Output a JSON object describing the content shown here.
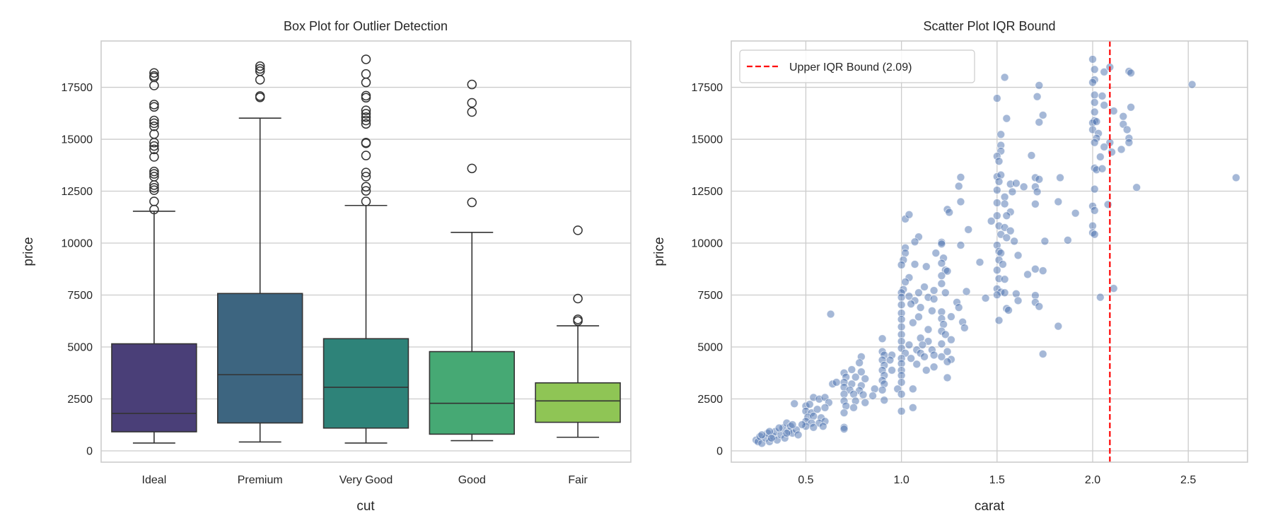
{
  "chart_data": [
    {
      "type": "box",
      "title": "Box Plot for Outlier Detection",
      "xlabel": "cut",
      "ylabel": "price",
      "ylim": [
        -545,
        19730
      ],
      "yticks": [
        0,
        2500,
        5000,
        7500,
        10000,
        12500,
        15000,
        17500
      ],
      "grid": true,
      "categories": [
        "Ideal",
        "Premium",
        "Very Good",
        "Good",
        "Fair"
      ],
      "colors": [
        "#4a3f78",
        "#3d6580",
        "#2e8379",
        "#46a974",
        "#8fc555"
      ],
      "boxes": [
        {
          "whisker_low": 376,
          "q1": 916,
          "median": 1800,
          "q3": 5153,
          "whisker_high": 11534,
          "outliers": [
            18192,
            18050,
            17980,
            17587,
            16671,
            16556,
            15902,
            15771,
            15624,
            15248,
            14838,
            14675,
            14511,
            14151,
            13448,
            13333,
            13202,
            12793,
            12663,
            12548,
            12008,
            11616
          ]
        },
        {
          "whisker_low": 425,
          "q1": 1342,
          "median": 3665,
          "q3": 7575,
          "whisker_high": 16016,
          "outliers": [
            18520,
            18389,
            18274,
            17865,
            17080,
            17015
          ]
        },
        {
          "whisker_low": 376,
          "q1": 1096,
          "median": 3059,
          "q3": 5399,
          "whisker_high": 11812,
          "outliers": [
            18847,
            18143,
            17734,
            17096,
            16998,
            16393,
            16229,
            16065,
            15902,
            15738,
            14838,
            14806,
            14217,
            13399,
            13202,
            12712,
            12515,
            12008
          ]
        },
        {
          "whisker_low": 491,
          "q1": 802,
          "median": 2290,
          "q3": 4777,
          "whisker_high": 10519,
          "outliers": [
            17636,
            16753,
            16311,
            13595,
            11959
          ]
        },
        {
          "whisker_low": 654,
          "q1": 1374,
          "median": 2405,
          "q3": 3272,
          "whisker_high": 6020,
          "outliers": [
            10617,
            7329,
            6331,
            6249
          ]
        }
      ]
    },
    {
      "type": "scatter",
      "title": "Scatter Plot IQR Bound",
      "xlabel": "carat",
      "ylabel": "price",
      "xlim": [
        0.11,
        2.81
      ],
      "ylim": [
        -545,
        19730
      ],
      "xticks": [
        0.5,
        1.0,
        1.5,
        2.0,
        2.5
      ],
      "xtick_labels": [
        "0.5",
        "1.0",
        "1.5",
        "2.0",
        "2.5"
      ],
      "yticks": [
        0,
        2500,
        5000,
        7500,
        10000,
        12500,
        15000,
        17500
      ],
      "grid": true,
      "point_color": "#4c72b0",
      "point_alpha": 0.5,
      "vline": {
        "x": 2.09,
        "color": "#ff0000",
        "style": "dashed",
        "label": "Upper IQR Bound (2.09)"
      },
      "legend_position": "top-left",
      "points": [
        [
          2.0,
          18850
        ],
        [
          2.01,
          18360
        ],
        [
          2.01,
          17865
        ],
        [
          2.0,
          17735
        ],
        [
          2.06,
          18240
        ],
        [
          2.09,
          18470
        ],
        [
          2.19,
          18270
        ],
        [
          2.2,
          18190
        ],
        [
          2.52,
          17636
        ],
        [
          2.05,
          17080
        ],
        [
          2.01,
          17130
        ],
        [
          2.01,
          16770
        ],
        [
          2.06,
          16640
        ],
        [
          2.11,
          16360
        ],
        [
          2.2,
          16540
        ],
        [
          2.01,
          16310
        ],
        [
          2.16,
          16100
        ],
        [
          2.16,
          15720
        ],
        [
          2.01,
          15900
        ],
        [
          2.0,
          15790
        ],
        [
          2.02,
          15850
        ],
        [
          2.0,
          15460
        ],
        [
          2.03,
          15280
        ],
        [
          2.18,
          15460
        ],
        [
          2.19,
          15050
        ],
        [
          2.02,
          15050
        ],
        [
          2.01,
          14840
        ],
        [
          2.09,
          14840
        ],
        [
          2.19,
          14840
        ],
        [
          2.06,
          14630
        ],
        [
          2.15,
          14510
        ],
        [
          2.1,
          14380
        ],
        [
          2.04,
          14150
        ],
        [
          2.01,
          13610
        ],
        [
          2.02,
          13530
        ],
        [
          2.05,
          13580
        ],
        [
          2.75,
          13150
        ],
        [
          2.23,
          12680
        ],
        [
          2.01,
          12600
        ],
        [
          2.08,
          11860
        ],
        [
          2.0,
          11780
        ],
        [
          2.01,
          11570
        ],
        [
          2.0,
          10830
        ],
        [
          2.0,
          10500
        ],
        [
          2.01,
          10420
        ],
        [
          2.11,
          7820
        ],
        [
          2.04,
          7395
        ],
        [
          1.54,
          17980
        ],
        [
          1.5,
          16970
        ],
        [
          1.72,
          17590
        ],
        [
          1.71,
          17050
        ],
        [
          1.74,
          16160
        ],
        [
          1.55,
          16000
        ],
        [
          1.72,
          15820
        ],
        [
          1.52,
          15230
        ],
        [
          1.52,
          14710
        ],
        [
          1.52,
          14430
        ],
        [
          1.5,
          14180
        ],
        [
          1.51,
          13940
        ],
        [
          1.68,
          14220
        ],
        [
          1.5,
          13200
        ],
        [
          1.52,
          13280
        ],
        [
          1.7,
          13150
        ],
        [
          1.72,
          13070
        ],
        [
          1.83,
          13150
        ],
        [
          1.51,
          12960
        ],
        [
          1.57,
          12840
        ],
        [
          1.6,
          12880
        ],
        [
          1.64,
          12710
        ],
        [
          1.7,
          12710
        ],
        [
          1.71,
          12470
        ],
        [
          1.5,
          12550
        ],
        [
          1.58,
          12470
        ],
        [
          1.54,
          12220
        ],
        [
          1.5,
          11940
        ],
        [
          1.82,
          11990
        ],
        [
          1.7,
          11880
        ],
        [
          1.54,
          11890
        ],
        [
          1.91,
          11440
        ],
        [
          1.57,
          11500
        ],
        [
          1.5,
          11320
        ],
        [
          1.55,
          11320
        ],
        [
          1.47,
          11060
        ],
        [
          1.51,
          10830
        ],
        [
          1.54,
          10750
        ],
        [
          1.52,
          10420
        ],
        [
          1.57,
          10590
        ],
        [
          1.55,
          10260
        ],
        [
          1.59,
          10090
        ],
        [
          1.75,
          10090
        ],
        [
          1.87,
          10140
        ],
        [
          1.61,
          9410
        ],
        [
          1.5,
          9900
        ],
        [
          1.51,
          9600
        ],
        [
          1.52,
          9520
        ],
        [
          1.51,
          9190
        ],
        [
          1.53,
          8980
        ],
        [
          1.41,
          9080
        ],
        [
          1.5,
          8700
        ],
        [
          1.7,
          8750
        ],
        [
          1.74,
          8670
        ],
        [
          1.66,
          8490
        ],
        [
          1.51,
          8290
        ],
        [
          1.54,
          8260
        ],
        [
          1.5,
          7800
        ],
        [
          1.52,
          7640
        ],
        [
          1.54,
          7610
        ],
        [
          1.6,
          7560
        ],
        [
          1.7,
          7480
        ],
        [
          1.5,
          7510
        ],
        [
          1.44,
          7350
        ],
        [
          1.61,
          7230
        ],
        [
          1.7,
          7150
        ],
        [
          1.72,
          6950
        ],
        [
          1.55,
          6850
        ],
        [
          1.56,
          6770
        ],
        [
          1.51,
          6280
        ],
        [
          1.82,
          6000
        ],
        [
          1.74,
          4660
        ],
        [
          1.02,
          11160
        ],
        [
          1.04,
          11370
        ],
        [
          1.24,
          11620
        ],
        [
          1.25,
          11480
        ],
        [
          1.31,
          11990
        ],
        [
          1.3,
          12740
        ],
        [
          1.31,
          13170
        ],
        [
          1.35,
          10650
        ],
        [
          1.09,
          10300
        ],
        [
          1.07,
          10060
        ],
        [
          1.21,
          10040
        ],
        [
          1.21,
          9960
        ],
        [
          1.31,
          9900
        ],
        [
          1.02,
          9770
        ],
        [
          1.02,
          9520
        ],
        [
          1.01,
          9190
        ],
        [
          1.0,
          8950
        ],
        [
          1.18,
          9520
        ],
        [
          1.22,
          9280
        ],
        [
          1.21,
          9030
        ],
        [
          1.07,
          8980
        ],
        [
          1.13,
          8870
        ],
        [
          1.23,
          8700
        ],
        [
          1.24,
          8650
        ],
        [
          1.21,
          8430
        ],
        [
          1.04,
          8340
        ],
        [
          1.02,
          8130
        ],
        [
          1.12,
          7890
        ],
        [
          1.21,
          8050
        ],
        [
          1.01,
          7770
        ],
        [
          1.0,
          7610
        ],
        [
          1.09,
          7610
        ],
        [
          1.17,
          7720
        ],
        [
          1.23,
          7610
        ],
        [
          1.34,
          7670
        ],
        [
          1.0,
          7390
        ],
        [
          1.04,
          7440
        ],
        [
          1.07,
          7230
        ],
        [
          1.14,
          7390
        ],
        [
          1.17,
          7310
        ],
        [
          1.29,
          7150
        ],
        [
          1.0,
          7030
        ],
        [
          1.05,
          7070
        ],
        [
          1.1,
          6900
        ],
        [
          1.16,
          6740
        ],
        [
          1.3,
          6900
        ],
        [
          1.0,
          6630
        ],
        [
          1.21,
          6690
        ],
        [
          1.26,
          6460
        ],
        [
          1.0,
          6330
        ],
        [
          1.09,
          6450
        ],
        [
          1.21,
          6360
        ],
        [
          1.06,
          6170
        ],
        [
          1.32,
          6200
        ],
        [
          1.0,
          5970
        ],
        [
          1.22,
          6090
        ],
        [
          1.14,
          5840
        ],
        [
          1.33,
          5920
        ],
        [
          1.0,
          5600
        ],
        [
          1.21,
          5760
        ],
        [
          1.23,
          5600
        ],
        [
          1.1,
          5430
        ],
        [
          1.0,
          5270
        ],
        [
          1.14,
          5270
        ],
        [
          1.26,
          5350
        ],
        [
          0.9,
          5400
        ],
        [
          1.04,
          5100
        ],
        [
          1.11,
          5100
        ],
        [
          1.21,
          5150
        ],
        [
          1.0,
          4940
        ],
        [
          1.08,
          4860
        ],
        [
          1.16,
          4860
        ],
        [
          1.24,
          4780
        ],
        [
          1.02,
          4700
        ],
        [
          1.1,
          4700
        ],
        [
          1.17,
          4610
        ],
        [
          1.0,
          4450
        ],
        [
          1.05,
          4450
        ],
        [
          1.12,
          4530
        ],
        [
          1.21,
          4530
        ],
        [
          1.26,
          4400
        ],
        [
          1.0,
          4200
        ],
        [
          1.08,
          4170
        ],
        [
          1.17,
          4040
        ],
        [
          1.24,
          4290
        ],
        [
          1.0,
          3880
        ],
        [
          1.13,
          3880
        ],
        [
          1.0,
          3630
        ],
        [
          1.24,
          3520
        ],
        [
          1.0,
          3300
        ],
        [
          0.98,
          2980
        ],
        [
          1.06,
          2980
        ],
        [
          1.0,
          2730
        ],
        [
          1.0,
          1910
        ],
        [
          1.06,
          2080
        ],
        [
          0.95,
          4610
        ],
        [
          0.94,
          4370
        ],
        [
          0.95,
          3880
        ],
        [
          0.9,
          4780
        ],
        [
          0.91,
          4610
        ],
        [
          0.9,
          4370
        ],
        [
          0.91,
          4120
        ],
        [
          0.9,
          3880
        ],
        [
          0.91,
          3630
        ],
        [
          0.9,
          3390
        ],
        [
          0.91,
          3220
        ],
        [
          0.9,
          2930
        ],
        [
          0.91,
          2440
        ],
        [
          0.79,
          4530
        ],
        [
          0.78,
          4240
        ],
        [
          0.74,
          3910
        ],
        [
          0.7,
          3750
        ],
        [
          0.79,
          3800
        ],
        [
          0.71,
          3550
        ],
        [
          0.76,
          3550
        ],
        [
          0.81,
          3470
        ],
        [
          0.7,
          3300
        ],
        [
          0.74,
          3220
        ],
        [
          0.79,
          3140
        ],
        [
          0.7,
          3060
        ],
        [
          0.73,
          2930
        ],
        [
          0.78,
          2900
        ],
        [
          0.86,
          2980
        ],
        [
          0.7,
          2730
        ],
        [
          0.75,
          2730
        ],
        [
          0.8,
          2700
        ],
        [
          0.7,
          2400
        ],
        [
          0.76,
          2400
        ],
        [
          0.81,
          2320
        ],
        [
          0.71,
          2160
        ],
        [
          0.75,
          2080
        ],
        [
          0.7,
          1830
        ],
        [
          0.7,
          1130
        ],
        [
          0.7,
          1050
        ],
        [
          0.64,
          3220
        ],
        [
          0.66,
          3300
        ],
        [
          0.63,
          6580
        ],
        [
          0.85,
          2650
        ],
        [
          0.44,
          2270
        ],
        [
          0.5,
          2160
        ],
        [
          0.52,
          2240
        ],
        [
          0.54,
          2570
        ],
        [
          0.57,
          2490
        ],
        [
          0.6,
          2570
        ],
        [
          0.62,
          2320
        ],
        [
          0.5,
          1910
        ],
        [
          0.53,
          1830
        ],
        [
          0.56,
          2000
        ],
        [
          0.6,
          2080
        ],
        [
          0.51,
          1620
        ],
        [
          0.54,
          1670
        ],
        [
          0.58,
          1590
        ],
        [
          0.5,
          1420
        ],
        [
          0.53,
          1340
        ],
        [
          0.57,
          1340
        ],
        [
          0.6,
          1420
        ],
        [
          0.5,
          1180
        ],
        [
          0.54,
          1130
        ],
        [
          0.59,
          1180
        ],
        [
          0.48,
          1260
        ],
        [
          0.24,
          520
        ],
        [
          0.25,
          440
        ],
        [
          0.26,
          690
        ],
        [
          0.27,
          360
        ],
        [
          0.29,
          610
        ],
        [
          0.3,
          850
        ],
        [
          0.31,
          440
        ],
        [
          0.33,
          690
        ],
        [
          0.34,
          930
        ],
        [
          0.35,
          520
        ],
        [
          0.37,
          770
        ],
        [
          0.38,
          1100
        ],
        [
          0.39,
          610
        ],
        [
          0.4,
          1340
        ],
        [
          0.41,
          930
        ],
        [
          0.42,
          1180
        ],
        [
          0.43,
          850
        ],
        [
          0.45,
          1010
        ],
        [
          0.46,
          770
        ],
        [
          0.31,
          930
        ],
        [
          0.36,
          1100
        ],
        [
          0.4,
          850
        ],
        [
          0.43,
          1260
        ],
        [
          0.27,
          770
        ],
        [
          0.32,
          610
        ]
      ]
    }
  ]
}
